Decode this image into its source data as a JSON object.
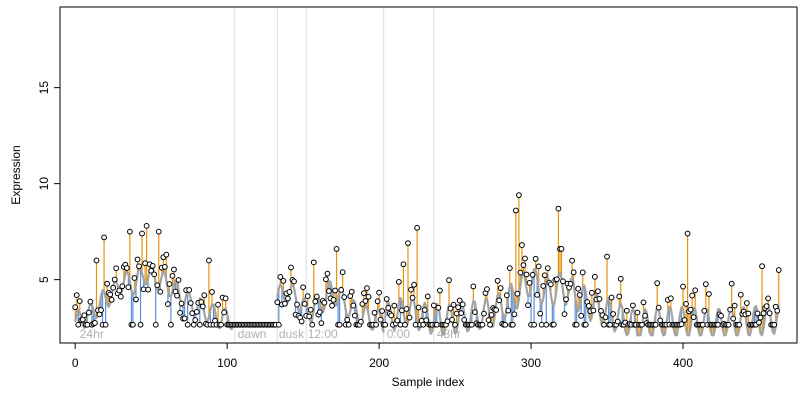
{
  "chart_data": {
    "type": "line",
    "xlabel": "Sample index",
    "ylabel": "Expression",
    "xlim": [
      -10,
      475
    ],
    "ylim": [
      1.7,
      19.2
    ],
    "xticks": [
      0,
      100,
      200,
      300,
      400
    ],
    "yticks": [
      5,
      10,
      15
    ],
    "grid": false,
    "vlines": [
      105,
      133,
      152,
      203,
      236
    ],
    "annotations": [
      {
        "x": 3,
        "label": "24hr"
      },
      {
        "x": 107,
        "label": "dawn"
      },
      {
        "x": 134,
        "label": "dusk"
      },
      {
        "x": 153,
        "label": "12:00"
      },
      {
        "x": 205,
        "label": "0:00"
      },
      {
        "x": 238,
        "label": "48hr"
      }
    ],
    "colors": {
      "fitted": "#a3a3a3",
      "above": "#e8940a",
      "below": "#5b8fd6",
      "points": "#000000",
      "vlines": "#dcdcdc"
    },
    "baseline": 2.65,
    "segments": [
      {
        "x0": 0,
        "x1": 104,
        "knots": [
          [
            0,
            2.8
          ],
          [
            10,
            3.2
          ],
          [
            18,
            3.9
          ],
          [
            25,
            4.3
          ],
          [
            32,
            5.0
          ],
          [
            38,
            4.7
          ],
          [
            45,
            5.3
          ],
          [
            52,
            5.1
          ],
          [
            58,
            4.9
          ],
          [
            65,
            4.5
          ],
          [
            72,
            4.0
          ],
          [
            80,
            3.6
          ],
          [
            88,
            3.3
          ],
          [
            95,
            3.0
          ],
          [
            104,
            2.95
          ]
        ],
        "amp": 0.55,
        "noise": 1.0
      },
      {
        "x0": 105,
        "x1": 132,
        "knots": [
          [
            105,
            2.65
          ],
          [
            132,
            2.65
          ]
        ],
        "amp": 0.0,
        "noise": 0.0
      },
      {
        "x0": 133,
        "x1": 203,
        "knots": [
          [
            133,
            4.1
          ],
          [
            140,
            4.3
          ],
          [
            147,
            4.0
          ],
          [
            152,
            3.3
          ],
          [
            160,
            3.6
          ],
          [
            168,
            4.4
          ],
          [
            175,
            4.0
          ],
          [
            182,
            3.4
          ],
          [
            190,
            3.1
          ],
          [
            198,
            2.9
          ],
          [
            203,
            2.8
          ]
        ],
        "amp": 0.6,
        "noise": 1.1
      },
      {
        "x0": 204,
        "x1": 463,
        "knots": [
          [
            204,
            3.0
          ],
          [
            220,
            3.4
          ],
          [
            230,
            3.0
          ],
          [
            245,
            2.9
          ],
          [
            260,
            3.1
          ],
          [
            275,
            3.3
          ],
          [
            290,
            4.2
          ],
          [
            300,
            5.0
          ],
          [
            310,
            4.3
          ],
          [
            320,
            4.6
          ],
          [
            330,
            4.2
          ],
          [
            340,
            3.6
          ],
          [
            355,
            3.1
          ],
          [
            370,
            2.6
          ],
          [
            385,
            2.8
          ],
          [
            400,
            2.8
          ],
          [
            420,
            2.7
          ],
          [
            440,
            2.8
          ],
          [
            455,
            2.9
          ],
          [
            463,
            3.0
          ]
        ],
        "amp": 0.8,
        "noise": 1.2
      }
    ],
    "peaks": [
      {
        "x": 14,
        "y": 6.0
      },
      {
        "x": 19,
        "y": 7.2
      },
      {
        "x": 36,
        "y": 7.5
      },
      {
        "x": 44,
        "y": 7.4
      },
      {
        "x": 47,
        "y": 7.8
      },
      {
        "x": 55,
        "y": 7.5
      },
      {
        "x": 60,
        "y": 6.3
      },
      {
        "x": 88,
        "y": 6.0
      },
      {
        "x": 157,
        "y": 5.9
      },
      {
        "x": 172,
        "y": 6.6
      },
      {
        "x": 216,
        "y": 5.8
      },
      {
        "x": 219,
        "y": 6.9
      },
      {
        "x": 225,
        "y": 7.7
      },
      {
        "x": 286,
        "y": 5.6
      },
      {
        "x": 290,
        "y": 8.6
      },
      {
        "x": 292,
        "y": 9.4
      },
      {
        "x": 294,
        "y": 6.8
      },
      {
        "x": 318,
        "y": 8.7
      },
      {
        "x": 320,
        "y": 6.6
      },
      {
        "x": 350,
        "y": 6.2
      },
      {
        "x": 403,
        "y": 7.4
      },
      {
        "x": 452,
        "y": 5.7
      },
      {
        "x": 463,
        "y": 5.5
      }
    ]
  }
}
